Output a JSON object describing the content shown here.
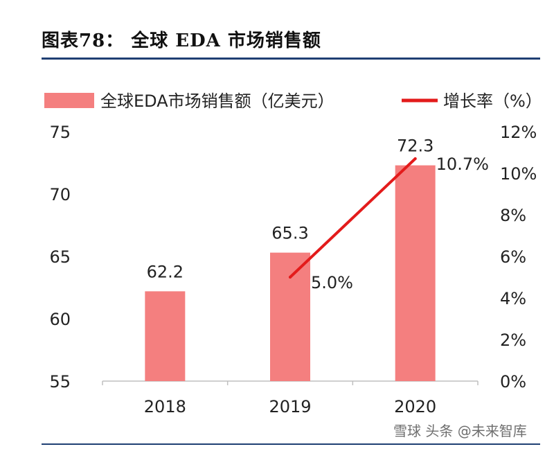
{
  "figure_title": "图表78：   全球 EDA 市场销售额",
  "watermark": "雪球 头条 @未来智库",
  "chart_data": {
    "type": "bar",
    "categories": [
      "2018",
      "2019",
      "2020"
    ],
    "series": [
      {
        "name": "全球EDA市场销售额（亿美元）",
        "type": "bar",
        "axis": "left",
        "values": [
          62.2,
          65.3,
          72.3
        ],
        "labels": [
          "62.2",
          "65.3",
          "72.3"
        ],
        "color": "#f47f7f"
      },
      {
        "name": "增长率（%）",
        "type": "line",
        "axis": "right",
        "values": [
          null,
          5.0,
          10.7
        ],
        "labels": [
          "",
          "5.0%",
          "10.7%"
        ],
        "color": "#e31b1b"
      }
    ],
    "ylim": [
      55,
      75
    ],
    "yticks": [
      "55",
      "60",
      "65",
      "70",
      "75"
    ],
    "y2lim": [
      0,
      12
    ],
    "y2ticks": [
      "0%",
      "2%",
      "4%",
      "6%",
      "8%",
      "10%",
      "12%"
    ],
    "grid": false,
    "legend_position": "top"
  }
}
